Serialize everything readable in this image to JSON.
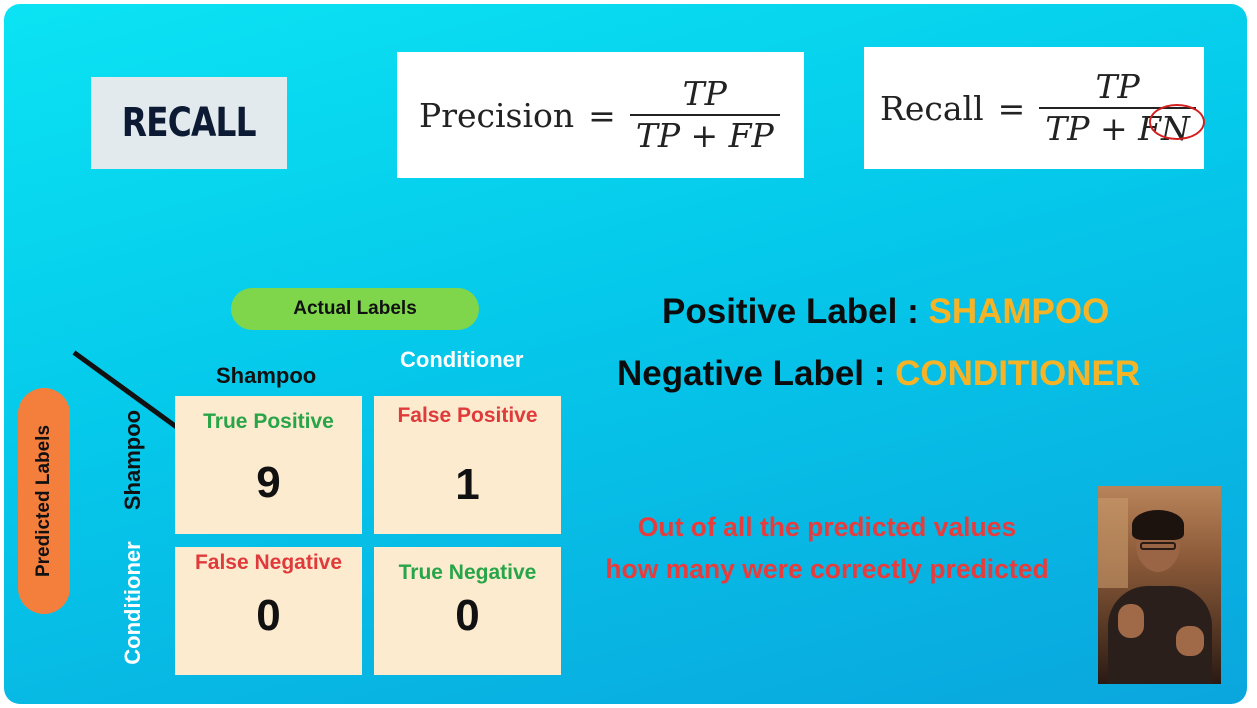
{
  "title": "RECALL",
  "formulas": {
    "precision": {
      "lhs": "Precision",
      "eq": "=",
      "num": "TP",
      "den": "TP + FP"
    },
    "recall": {
      "lhs": "Recall",
      "eq": "=",
      "num": "TP",
      "den_a": "TP +",
      "den_b": "FN"
    }
  },
  "matrix": {
    "actual_label": "Actual Labels",
    "predicted_label": "Predicted Labels",
    "col_shampoo": "Shampoo",
    "col_conditioner": "Conditioner",
    "row_shampoo": "Shampoo",
    "row_conditioner": "Conditioner",
    "tp": {
      "label": "True Positive",
      "value": "9"
    },
    "fp": {
      "label": "False Positive",
      "value": "1"
    },
    "fn": {
      "label": "False Negative",
      "value": "0"
    },
    "tn": {
      "label": "True Negative",
      "value": "0"
    }
  },
  "legend": {
    "positive_key": "Positive Label :",
    "positive_value": "SHAMPOO",
    "negative_key": "Negative Label :",
    "negative_value": "CONDITIONER"
  },
  "caption": {
    "line1": "Out of all the predicted values",
    "line2": "how many were correctly predicted"
  },
  "colors": {
    "background": "#05c8ea",
    "highlight": "#f6b326",
    "caption": "#e83c3c",
    "green_pill": "#7fd64b",
    "orange_pill": "#f47f3c"
  }
}
